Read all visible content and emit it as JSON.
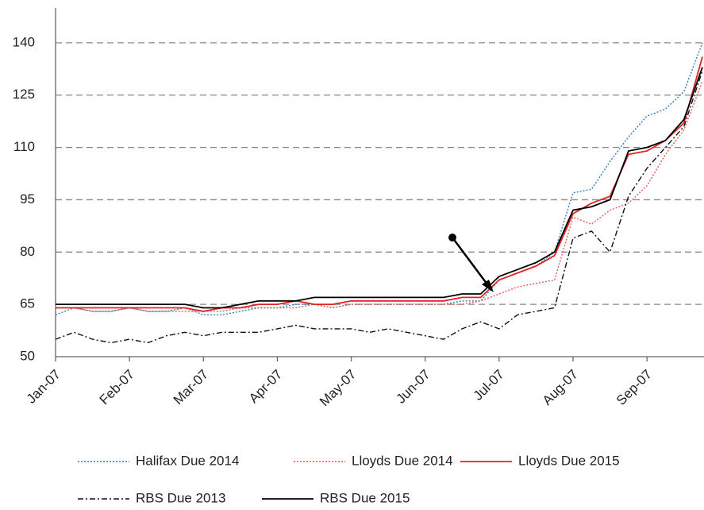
{
  "chart_data": {
    "type": "line",
    "categories": [
      "Jan-07",
      null,
      null,
      null,
      "Feb-07",
      null,
      null,
      null,
      "Mar-07",
      null,
      null,
      null,
      "Apr-07",
      null,
      null,
      null,
      "May-07",
      null,
      null,
      null,
      "Jun-07",
      null,
      null,
      null,
      "Jul-07",
      null,
      null,
      null,
      "Aug-07",
      null,
      null,
      null,
      "Sep-07",
      null,
      null,
      null
    ],
    "ylim": [
      50,
      150
    ],
    "yticks": [
      50,
      65,
      80,
      95,
      110,
      125,
      140
    ],
    "grid": true,
    "legend": "bottom",
    "series": [
      {
        "name": "Halifax Due 2014",
        "color": "#2b7fc3",
        "style": "dotted",
        "values": [
          62,
          64,
          63,
          63,
          64,
          63,
          63,
          64,
          62,
          62,
          63,
          64,
          64,
          65,
          65,
          64,
          65,
          65,
          65,
          65,
          65,
          65,
          66,
          66,
          72,
          74,
          76,
          80,
          97,
          98,
          106,
          113,
          119,
          121,
          126,
          140
        ]
      },
      {
        "name": "Lloyds Due 2014",
        "color": "#e55a5a",
        "style": "dotted",
        "values": [
          64,
          64,
          63,
          63,
          64,
          63,
          63,
          63,
          63,
          63,
          64,
          64,
          64,
          64,
          65,
          64,
          65,
          65,
          65,
          65,
          65,
          65,
          65,
          66,
          68,
          70,
          71,
          72,
          90,
          88,
          92,
          94,
          99,
          108,
          115,
          129
        ]
      },
      {
        "name": "Lloyds Due 2015",
        "color": "#e32222",
        "style": "solid",
        "values": [
          64,
          64,
          64,
          64,
          64,
          64,
          64,
          64,
          63,
          64,
          64,
          65,
          65,
          66,
          65,
          65,
          66,
          66,
          66,
          66,
          66,
          66,
          67,
          67,
          72,
          74,
          76,
          79,
          91,
          94,
          96,
          108,
          109,
          112,
          117,
          136
        ]
      },
      {
        "name": "RBS Due 2013",
        "color": "#111111",
        "style": "dashdot",
        "values": [
          55,
          57,
          55,
          54,
          55,
          54,
          56,
          57,
          56,
          57,
          57,
          57,
          58,
          59,
          58,
          58,
          58,
          57,
          58,
          57,
          56,
          55,
          58,
          60,
          58,
          62,
          63,
          64,
          84,
          86,
          80,
          96,
          104,
          110,
          116,
          132
        ]
      },
      {
        "name": "RBS Due 2015",
        "color": "#000000",
        "style": "solid",
        "values": [
          65,
          65,
          65,
          65,
          65,
          65,
          65,
          65,
          64,
          64,
          65,
          66,
          66,
          66,
          67,
          67,
          67,
          67,
          67,
          67,
          67,
          67,
          68,
          68,
          73,
          75,
          77,
          80,
          92,
          93,
          95,
          109,
          110,
          112,
          118,
          133
        ]
      }
    ]
  }
}
